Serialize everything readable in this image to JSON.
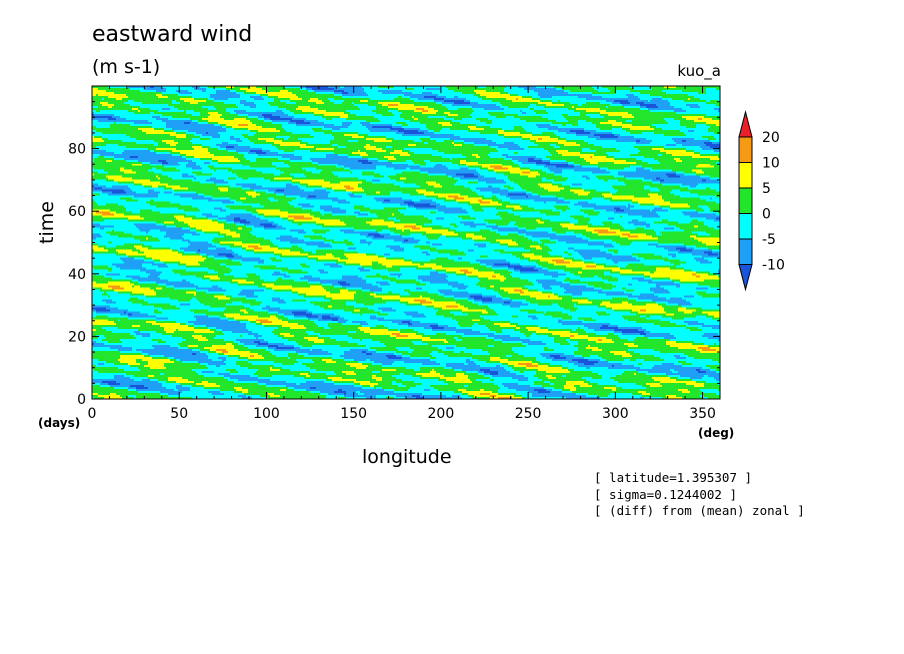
{
  "chart_data": {
    "type": "heatmap",
    "title": "eastward wind",
    "units": "(m s-1)",
    "run": "kuo_a",
    "xlabel": "longitude",
    "ylabel": "time",
    "x_unit": "(deg)",
    "y_unit": "(days)",
    "xlim": [
      0,
      360
    ],
    "ylim": [
      0,
      100
    ],
    "x_ticks": [
      "0",
      "50",
      "100",
      "150",
      "200",
      "250",
      "300",
      "350"
    ],
    "y_ticks": [
      "0",
      "20",
      "40",
      "60",
      "80"
    ],
    "colorbar": {
      "levels": [
        "20",
        "10",
        "5",
        "0",
        "-5",
        "-10"
      ],
      "colors": [
        "#e8212a",
        "#f59a15",
        "#ffff00",
        "#22e62b",
        "#00ffff",
        "#1f9ff5",
        "#1a55d9"
      ],
      "extend": "both"
    },
    "annotations": [
      "[ latitude=1.395307 ]",
      "[ sigma=0.1244002 ]",
      "[ (diff) from (mean) zonal ]"
    ]
  }
}
